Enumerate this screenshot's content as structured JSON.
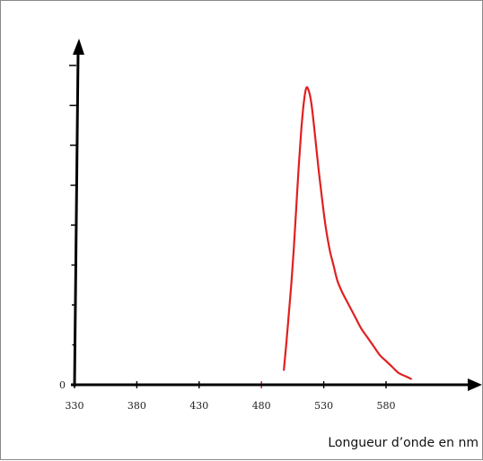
{
  "chart_data": {
    "type": "line",
    "title": "",
    "xlabel": "Longueur d’onde en nm",
    "ylabel": "",
    "x_ticks": [
      330,
      380,
      430,
      480,
      530,
      580
    ],
    "y_ticks": [
      0
    ],
    "xlim": [
      330,
      610
    ],
    "ylim": [
      0,
      1.1
    ],
    "grid": false,
    "series_color": "#e02020",
    "series": [
      {
        "x": [
          498,
          500,
          502,
          504,
          506,
          508,
          510,
          512,
          514,
          516,
          518,
          520,
          522,
          524,
          526,
          528,
          530,
          532,
          535,
          538,
          541,
          545,
          550,
          555,
          560,
          565,
          570,
          575,
          580,
          585,
          590,
          595,
          600
        ],
        "y": [
          0.05,
          0.14,
          0.24,
          0.34,
          0.46,
          0.6,
          0.74,
          0.86,
          0.95,
          1.0,
          0.99,
          0.95,
          0.88,
          0.8,
          0.72,
          0.65,
          0.58,
          0.52,
          0.45,
          0.4,
          0.35,
          0.31,
          0.27,
          0.23,
          0.19,
          0.16,
          0.13,
          0.1,
          0.08,
          0.06,
          0.04,
          0.03,
          0.02
        ]
      }
    ]
  }
}
